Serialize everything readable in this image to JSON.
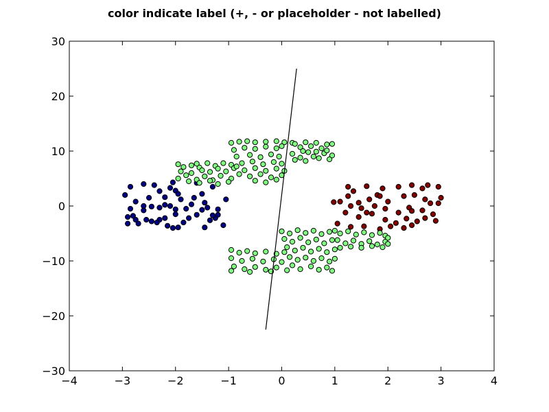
{
  "chart_data": {
    "type": "scatter",
    "title": "color indicate label (+, - or placeholder - not labelled)",
    "xlabel": "",
    "ylabel": "",
    "xlim": [
      -4,
      4
    ],
    "ylim": [
      -30,
      30
    ],
    "x_ticks": [
      -4,
      -3,
      -2,
      -1,
      0,
      1,
      2,
      3,
      4
    ],
    "y_ticks": [
      -30,
      -20,
      -10,
      0,
      10,
      20,
      30
    ],
    "x_tick_labels": [
      "−4",
      "−3",
      "−2",
      "−1",
      "0",
      "1",
      "2",
      "3",
      "4"
    ],
    "y_tick_labels": [
      "−30",
      "−20",
      "−10",
      "0",
      "10",
      "20",
      "30"
    ],
    "grid": false,
    "colors": {
      "negative": "#000080",
      "unlabelled": "#80ff80",
      "positive": "#800000",
      "marker_edge": "#000000",
      "line": "#000000"
    },
    "series": [
      {
        "class": "negative",
        "color": "#000080",
        "points": [
          [
            -2.95,
            2.0
          ],
          [
            -2.85,
            3.5
          ],
          [
            -2.75,
            0.8
          ],
          [
            -2.6,
            4.0
          ],
          [
            -2.4,
            3.8
          ],
          [
            -2.5,
            1.5
          ],
          [
            -2.6,
            -0.8
          ],
          [
            -2.85,
            -0.5
          ],
          [
            -2.9,
            -2.0
          ],
          [
            -2.75,
            -2.5
          ],
          [
            -2.7,
            -3.2
          ],
          [
            -2.9,
            -3.2
          ],
          [
            -2.8,
            -1.8
          ],
          [
            -2.45,
            -2.8
          ],
          [
            -2.3,
            -2.5
          ],
          [
            -2.2,
            -2.2
          ],
          [
            -2.3,
            -0.3
          ],
          [
            -2.2,
            0.2
          ],
          [
            -2.1,
            0.0
          ],
          [
            -2.0,
            -0.6
          ],
          [
            -2.0,
            -1.5
          ],
          [
            -2.15,
            -3.6
          ],
          [
            -2.05,
            -4.0
          ],
          [
            -1.95,
            -3.9
          ],
          [
            -1.85,
            -3.0
          ],
          [
            -1.75,
            -2.2
          ],
          [
            -1.8,
            -0.5
          ],
          [
            -1.7,
            0.3
          ],
          [
            -1.5,
            -0.7
          ],
          [
            -1.4,
            -0.3
          ],
          [
            -1.35,
            -2.6
          ],
          [
            -1.25,
            -2.2
          ],
          [
            -1.3,
            -1.7
          ],
          [
            -1.2,
            -0.6
          ],
          [
            -1.1,
            -3.5
          ],
          [
            -1.05,
            1.2
          ],
          [
            -1.9,
            1.2
          ],
          [
            -1.65,
            1.5
          ],
          [
            -1.5,
            2.2
          ],
          [
            -1.3,
            3.5
          ],
          [
            -2.0,
            2.8
          ],
          [
            -2.3,
            2.7
          ],
          [
            -2.1,
            3.3
          ],
          [
            -2.05,
            4.3
          ],
          [
            -1.6,
            4.2
          ],
          [
            -2.35,
            -3.0
          ],
          [
            -1.45,
            -3.9
          ],
          [
            -2.6,
            0.0
          ],
          [
            -2.45,
            -0.1
          ],
          [
            -1.95,
            2.2
          ],
          [
            -2.2,
            1.6
          ],
          [
            -1.6,
            -1.6
          ],
          [
            -2.55,
            -2.5
          ],
          [
            -1.45,
            0.6
          ],
          [
            -1.2,
            -1.6
          ]
        ]
      },
      {
        "class": "positive",
        "color": "#800000",
        "points": [
          [
            1.25,
            3.5
          ],
          [
            1.35,
            2.7
          ],
          [
            1.6,
            3.6
          ],
          [
            1.9,
            3.2
          ],
          [
            1.8,
            2.0
          ],
          [
            1.65,
            1.2
          ],
          [
            1.45,
            0.6
          ],
          [
            1.3,
            0.0
          ],
          [
            1.2,
            -1.2
          ],
          [
            1.05,
            -3.2
          ],
          [
            1.3,
            -3.8
          ],
          [
            1.45,
            -2.0
          ],
          [
            1.55,
            -3.7
          ],
          [
            1.85,
            -4.2
          ],
          [
            2.05,
            -3.7
          ],
          [
            2.15,
            -3.1
          ],
          [
            2.2,
            -1.2
          ],
          [
            2.4,
            -0.3
          ],
          [
            2.45,
            -0.9
          ],
          [
            2.65,
            -0.8
          ],
          [
            2.8,
            0.5
          ],
          [
            2.7,
            1.2
          ],
          [
            2.5,
            2.0
          ],
          [
            2.3,
            1.8
          ],
          [
            2.2,
            3.5
          ],
          [
            2.45,
            3.8
          ],
          [
            2.65,
            3.2
          ],
          [
            2.75,
            3.8
          ],
          [
            2.95,
            3.5
          ],
          [
            3.0,
            1.5
          ],
          [
            2.95,
            0.5
          ],
          [
            2.85,
            -1.5
          ],
          [
            2.9,
            -2.7
          ],
          [
            2.7,
            -2.2
          ],
          [
            2.45,
            -3.5
          ],
          [
            2.3,
            -4.0
          ],
          [
            2.0,
            0.8
          ],
          [
            1.95,
            -0.5
          ],
          [
            1.75,
            0.0
          ],
          [
            1.6,
            -1.2
          ],
          [
            1.7,
            -1.4
          ],
          [
            1.5,
            -0.4
          ],
          [
            1.25,
            1.8
          ],
          [
            1.1,
            0.8
          ],
          [
            0.98,
            0.7
          ],
          [
            1.85,
            1.8
          ],
          [
            2.55,
            -2.8
          ],
          [
            2.35,
            -2.3
          ],
          [
            1.95,
            -2.5
          ]
        ]
      },
      {
        "class": "unlabelled",
        "color": "#80ff80",
        "points": [
          [
            -1.95,
            7.6
          ],
          [
            -1.85,
            7.1
          ],
          [
            -1.7,
            7.4
          ],
          [
            -1.55,
            7.0
          ],
          [
            -1.4,
            7.8
          ],
          [
            -1.25,
            7.3
          ],
          [
            -1.1,
            7.8
          ],
          [
            -0.95,
            7.5
          ],
          [
            -1.95,
            5.0
          ],
          [
            -1.8,
            5.6
          ],
          [
            -1.6,
            4.8
          ],
          [
            -1.45,
            5.4
          ],
          [
            -1.3,
            4.7
          ],
          [
            -1.15,
            5.5
          ],
          [
            -0.95,
            5.0
          ],
          [
            -1.9,
            6.3
          ],
          [
            -1.7,
            6.0
          ],
          [
            -1.5,
            6.5
          ],
          [
            -1.35,
            6.2
          ],
          [
            -1.2,
            6.8
          ],
          [
            -1.05,
            6.3
          ],
          [
            -0.9,
            6.9
          ],
          [
            -1.75,
            4.5
          ],
          [
            -1.55,
            4.2
          ],
          [
            -1.35,
            4.6
          ],
          [
            -1.2,
            4.0
          ],
          [
            -1.0,
            4.4
          ],
          [
            -0.8,
            5.8
          ],
          [
            -0.85,
            7.2
          ],
          [
            -1.6,
            7.7
          ],
          [
            -0.95,
            11.5
          ],
          [
            -0.8,
            11.7
          ],
          [
            -0.65,
            11.8
          ],
          [
            -0.5,
            11.6
          ],
          [
            -0.3,
            11.7
          ],
          [
            -0.1,
            11.8
          ],
          [
            0.05,
            11.6
          ],
          [
            0.2,
            11.5
          ],
          [
            -0.9,
            10.2
          ],
          [
            -0.7,
            10.6
          ],
          [
            -0.5,
            10.4
          ],
          [
            -0.3,
            10.8
          ],
          [
            -0.1,
            10.5
          ],
          [
            0.0,
            10.9
          ],
          [
            -0.85,
            9.0
          ],
          [
            -0.6,
            9.3
          ],
          [
            -0.4,
            8.9
          ],
          [
            -0.2,
            9.4
          ],
          [
            -0.05,
            9.0
          ],
          [
            -0.75,
            7.8
          ],
          [
            -0.55,
            8.1
          ],
          [
            -0.35,
            7.6
          ],
          [
            -0.15,
            8.0
          ],
          [
            0.0,
            7.7
          ],
          [
            -0.7,
            6.5
          ],
          [
            -0.5,
            6.9
          ],
          [
            -0.3,
            6.4
          ],
          [
            -0.1,
            6.8
          ],
          [
            0.05,
            6.4
          ],
          [
            -0.6,
            5.4
          ],
          [
            -0.4,
            5.8
          ],
          [
            -0.2,
            5.2
          ],
          [
            0.0,
            5.6
          ],
          [
            -0.5,
            4.6
          ],
          [
            -0.3,
            4.3
          ],
          [
            -0.1,
            4.8
          ],
          [
            0.25,
            11.3
          ],
          [
            0.35,
            10.7
          ],
          [
            0.45,
            11.6
          ],
          [
            0.55,
            10.9
          ],
          [
            0.65,
            11.5
          ],
          [
            0.75,
            10.5
          ],
          [
            0.85,
            11.2
          ],
          [
            0.95,
            11.3
          ],
          [
            0.2,
            9.5
          ],
          [
            0.35,
            8.8
          ],
          [
            0.5,
            9.8
          ],
          [
            0.6,
            9.0
          ],
          [
            0.7,
            8.7
          ],
          [
            0.8,
            9.6
          ],
          [
            0.9,
            8.5
          ],
          [
            0.95,
            9.2
          ],
          [
            0.25,
            8.4
          ],
          [
            0.45,
            8.2
          ],
          [
            0.65,
            9.9
          ],
          [
            0.85,
            10.1
          ],
          [
            0.4,
            10.0
          ],
          [
            -0.95,
            -8.0
          ],
          [
            -0.8,
            -8.5
          ],
          [
            -0.65,
            -8.2
          ],
          [
            -0.5,
            -8.6
          ],
          [
            -0.3,
            -8.3
          ],
          [
            -0.1,
            -8.7
          ],
          [
            0.05,
            -8.4
          ],
          [
            -0.95,
            -9.5
          ],
          [
            -0.75,
            -10.0
          ],
          [
            -0.55,
            -9.6
          ],
          [
            -0.35,
            -10.1
          ],
          [
            -0.15,
            -9.7
          ],
          [
            0.0,
            -10.2
          ],
          [
            -0.9,
            -11.0
          ],
          [
            -0.7,
            -11.5
          ],
          [
            -0.5,
            -11.1
          ],
          [
            -0.3,
            -11.6
          ],
          [
            -0.1,
            -11.2
          ],
          [
            0.1,
            -11.7
          ],
          [
            -0.95,
            -11.8
          ],
          [
            -0.6,
            -12.0
          ],
          [
            -0.2,
            -11.9
          ],
          [
            0.0,
            -4.6
          ],
          [
            0.15,
            -5.0
          ],
          [
            0.3,
            -4.4
          ],
          [
            0.45,
            -4.9
          ],
          [
            0.6,
            -4.5
          ],
          [
            0.75,
            -5.1
          ],
          [
            0.9,
            -4.7
          ],
          [
            0.05,
            -6.0
          ],
          [
            0.2,
            -6.5
          ],
          [
            0.35,
            -5.8
          ],
          [
            0.5,
            -6.6
          ],
          [
            0.65,
            -6.1
          ],
          [
            0.8,
            -6.8
          ],
          [
            0.95,
            -6.2
          ],
          [
            0.1,
            -7.5
          ],
          [
            0.25,
            -8.1
          ],
          [
            0.4,
            -7.6
          ],
          [
            0.55,
            -8.3
          ],
          [
            0.7,
            -7.8
          ],
          [
            0.85,
            -8.4
          ],
          [
            1.0,
            -7.9
          ],
          [
            0.15,
            -9.3
          ],
          [
            0.3,
            -9.8
          ],
          [
            0.45,
            -9.4
          ],
          [
            0.6,
            -10.0
          ],
          [
            0.75,
            -9.5
          ],
          [
            0.9,
            -10.1
          ],
          [
            1.0,
            -9.6
          ],
          [
            0.2,
            -10.8
          ],
          [
            0.35,
            -11.5
          ],
          [
            0.55,
            -11.0
          ],
          [
            0.7,
            -11.6
          ],
          [
            0.85,
            -11.2
          ],
          [
            0.95,
            -11.8
          ],
          [
            1.0,
            -4.5
          ],
          [
            1.1,
            -5.0
          ],
          [
            1.25,
            -4.6
          ],
          [
            1.4,
            -5.2
          ],
          [
            1.55,
            -4.8
          ],
          [
            1.7,
            -5.3
          ],
          [
            1.85,
            -4.9
          ],
          [
            1.95,
            -5.4
          ],
          [
            1.05,
            -6.2
          ],
          [
            1.2,
            -6.8
          ],
          [
            1.35,
            -6.3
          ],
          [
            1.5,
            -6.9
          ],
          [
            1.65,
            -6.4
          ],
          [
            1.8,
            -7.0
          ],
          [
            1.95,
            -6.5
          ],
          [
            1.1,
            -7.6
          ],
          [
            1.3,
            -7.4
          ],
          [
            1.5,
            -7.6
          ],
          [
            1.7,
            -7.3
          ],
          [
            1.9,
            -7.5
          ],
          [
            2.0,
            -5.8
          ],
          [
            2.0,
            -6.9
          ]
        ]
      }
    ],
    "line": {
      "x": [
        -0.3,
        0.28
      ],
      "y": [
        -22.5,
        25.0
      ]
    }
  }
}
